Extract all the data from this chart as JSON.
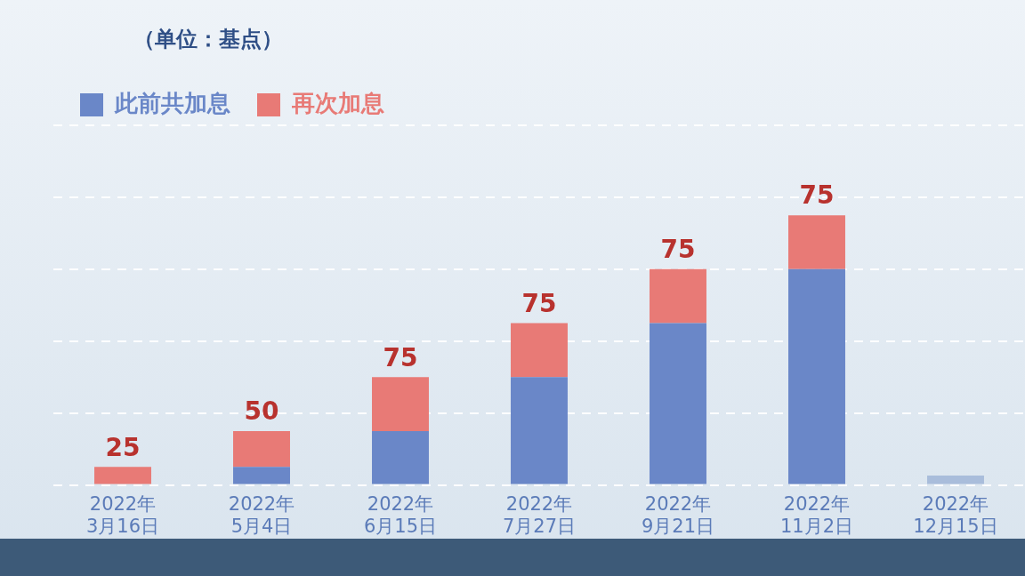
{
  "chart_data": {
    "type": "bar",
    "stacked": true,
    "ylabel": "（单位：基点）",
    "categories": [
      "2022年3月16日",
      "2022年5月4日",
      "2022年6月15日",
      "2022年7月27日",
      "2022年9月21日",
      "2022年11月2日",
      "2022年12月15日"
    ],
    "series": [
      {
        "name": "此前共加息",
        "color": "#6a87c8",
        "colors": [
          "#6a87c8",
          "#6a87c8",
          "#6a87c8",
          "#6a87c8",
          "#6a87c8",
          "#6a87c8",
          "#a9bddb"
        ],
        "values": [
          0,
          25,
          75,
          150,
          225,
          300,
          13
        ]
      },
      {
        "name": "再次加息",
        "color": "#e87a76",
        "values": [
          25,
          50,
          75,
          75,
          75,
          75,
          null
        ],
        "value_labels": [
          "25",
          "50",
          "75",
          "75",
          "75",
          "75",
          null
        ]
      }
    ],
    "ylim": [
      0,
      500
    ],
    "yticks": [
      {
        "value": 0,
        "label": null
      },
      {
        "value": 100,
        "label": null
      },
      {
        "value": 200,
        "label": null
      },
      {
        "value": 300,
        "label": null
      },
      {
        "value": 400,
        "label": null
      },
      {
        "value": 500,
        "label": null
      }
    ],
    "tick_labels": "x",
    "grid": "y",
    "legend": "top left"
  }
}
